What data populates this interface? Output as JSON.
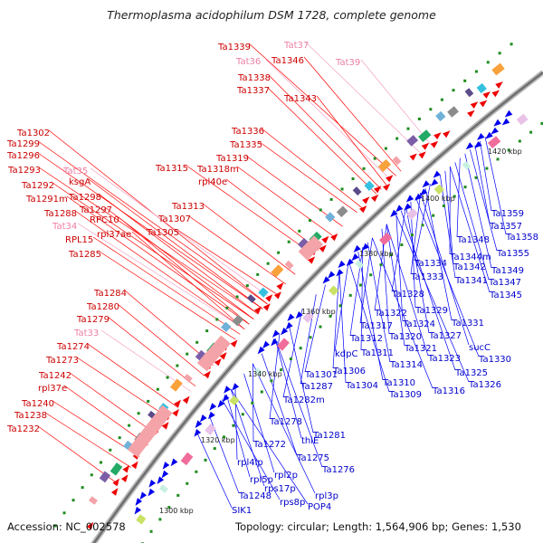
{
  "title": "Thermoplasma acidophilum DSM 1728, complete genome",
  "footer": {
    "accession": "Accession: NC_002578",
    "topology": "Topology: circular; Length: 1,564,906 bp; Genes: 1,530"
  },
  "scale_labels": [
    "1300 kbp",
    "1320 kbp",
    "1340 kbp",
    "1360 kbp",
    "1380 kbp",
    "1400 kbp",
    "1420 kbp"
  ],
  "outer_labels": [
    {
      "text": "Ta1339",
      "cls": "red"
    },
    {
      "text": "Tat36",
      "cls": "pink"
    },
    {
      "text": "Ta1346",
      "cls": "red"
    },
    {
      "text": "Tat37",
      "cls": "pink"
    },
    {
      "text": "Tat39",
      "cls": "pink"
    },
    {
      "text": "Ta1338",
      "cls": "red"
    },
    {
      "text": "Ta1337",
      "cls": "red"
    },
    {
      "text": "Ta1343",
      "cls": "red"
    },
    {
      "text": "Ta1336",
      "cls": "red"
    },
    {
      "text": "Ta1335",
      "cls": "red"
    },
    {
      "text": "Ta1319",
      "cls": "red"
    },
    {
      "text": "Ta1302",
      "cls": "red"
    },
    {
      "text": "Ta1299",
      "cls": "red"
    },
    {
      "text": "Ta1296",
      "cls": "red"
    },
    {
      "text": "Ta1315",
      "cls": "red"
    },
    {
      "text": "Ta1318m",
      "cls": "red"
    },
    {
      "text": "Ta1293",
      "cls": "red"
    },
    {
      "text": "Tat35",
      "cls": "pink"
    },
    {
      "text": "rpl40e",
      "cls": "red"
    },
    {
      "text": "Ta1292",
      "cls": "red"
    },
    {
      "text": "ksgA",
      "cls": "red"
    },
    {
      "text": "Ta1291m",
      "cls": "red"
    },
    {
      "text": "Ta1298",
      "cls": "red"
    },
    {
      "text": "Ta1313",
      "cls": "red"
    },
    {
      "text": "Ta1297",
      "cls": "red"
    },
    {
      "text": "Ta1288",
      "cls": "red"
    },
    {
      "text": "RPC10",
      "cls": "red"
    },
    {
      "text": "Ta1307",
      "cls": "red"
    },
    {
      "text": "Tat34",
      "cls": "pink"
    },
    {
      "text": "rpl37ae",
      "cls": "red"
    },
    {
      "text": "Ta1305",
      "cls": "red"
    },
    {
      "text": "RPL15",
      "cls": "red"
    },
    {
      "text": "Ta1285",
      "cls": "red"
    },
    {
      "text": "Ta1284",
      "cls": "red"
    },
    {
      "text": "Ta1280",
      "cls": "red"
    },
    {
      "text": "Ta1279",
      "cls": "red"
    },
    {
      "text": "Tat33",
      "cls": "pink"
    },
    {
      "text": "Ta1274",
      "cls": "red"
    },
    {
      "text": "Ta1273",
      "cls": "red"
    },
    {
      "text": "Ta1242",
      "cls": "red"
    },
    {
      "text": "rpl37e",
      "cls": "red"
    },
    {
      "text": "Ta1240",
      "cls": "red"
    },
    {
      "text": "Ta1238",
      "cls": "red"
    },
    {
      "text": "Ta1232",
      "cls": "red"
    }
  ],
  "inner_labels": [
    {
      "text": "Ta1359"
    },
    {
      "text": "Ta1357"
    },
    {
      "text": "Ta1348"
    },
    {
      "text": "Ta1358"
    },
    {
      "text": "Ta1355"
    },
    {
      "text": "Ta1334"
    },
    {
      "text": "Ta1344m"
    },
    {
      "text": "Ta1342"
    },
    {
      "text": "Ta1349"
    },
    {
      "text": "Ta1333"
    },
    {
      "text": "Ta1341"
    },
    {
      "text": "Ta1347"
    },
    {
      "text": "Ta1328"
    },
    {
      "text": "Ta1345"
    },
    {
      "text": "Ta1322"
    },
    {
      "text": "Ta1329"
    },
    {
      "text": "Ta1317"
    },
    {
      "text": "Ta1324"
    },
    {
      "text": "Ta1331"
    },
    {
      "text": "Ta1312"
    },
    {
      "text": "Ta1320"
    },
    {
      "text": "Ta1327"
    },
    {
      "text": "kdpC"
    },
    {
      "text": "Ta1311"
    },
    {
      "text": "Ta1321"
    },
    {
      "text": "sucC"
    },
    {
      "text": "Ta1306"
    },
    {
      "text": "Ta1314"
    },
    {
      "text": "Ta1323"
    },
    {
      "text": "Ta1330"
    },
    {
      "text": "Ta1301"
    },
    {
      "text": "Ta1325"
    },
    {
      "text": "Ta1287"
    },
    {
      "text": "Ta1304"
    },
    {
      "text": "Ta1310"
    },
    {
      "text": "Ta1326"
    },
    {
      "text": "Ta1282m"
    },
    {
      "text": "Ta1309"
    },
    {
      "text": "Ta1316"
    },
    {
      "text": "Ta1278"
    },
    {
      "text": "Ta1281"
    },
    {
      "text": "thiE"
    },
    {
      "text": "Ta1272"
    },
    {
      "text": "Ta1275"
    },
    {
      "text": "rpl4lp"
    },
    {
      "text": "Ta1276"
    },
    {
      "text": "rpl2p"
    },
    {
      "text": "rpl5p"
    },
    {
      "text": "rps17p"
    },
    {
      "text": "rpl3p"
    },
    {
      "text": "Ta1248"
    },
    {
      "text": "rps8p"
    },
    {
      "text": "POP4"
    },
    {
      "text": "SIK1"
    }
  ],
  "colors": {
    "forward_gene": "#ee0000",
    "reverse_gene": "#0000ee",
    "trna": "#ee7fa6",
    "outer_line": "#ff0000",
    "inner_line": "#0000ff",
    "backbone": "#808080",
    "tick_green": "#1e8c1e"
  }
}
